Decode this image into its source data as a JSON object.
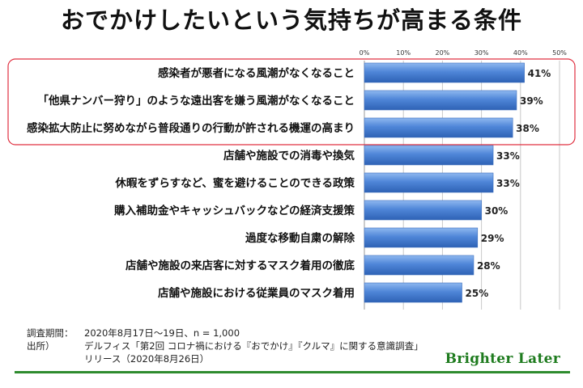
{
  "chart_data": {
    "type": "bar",
    "orientation": "horizontal",
    "title": "おでかけしたいという気持ちが高まる条件",
    "categories": [
      "感染者が悪者になる風潮がなくなること",
      "「他県ナンバー狩り」のような遠出客を嫌う風潮がなくなること",
      "感染拡大防止に努めながら普段通りの行動が許される機運の高まり",
      "店舗や施設での消毒や換気",
      "休暇をずらすなど、蜜を避けることのできる政策",
      "購入補助金やキャッシュバックなどの経済支援策",
      "過度な移動自粛の解除",
      "店舗や施設の来店客に対するマスク着用の徹底",
      "店舗や施設における従業員のマスク着用"
    ],
    "values": [
      41,
      39,
      38,
      33,
      33,
      30,
      29,
      28,
      25
    ],
    "data_labels": [
      "41%",
      "39%",
      "38%",
      "33%",
      "33%",
      "30%",
      "29%",
      "28%",
      "25%"
    ],
    "xlim": [
      0,
      50
    ],
    "ticks": [
      0,
      10,
      20,
      30,
      40,
      50
    ],
    "tick_labels": [
      "0%",
      "10%",
      "20%",
      "30%",
      "40%",
      "50%"
    ],
    "tick_position": "top",
    "grid": true,
    "highlighted_categories": [
      0,
      1,
      2
    ],
    "bar_color": "#4f86d8",
    "highlight_color": "#e03040"
  },
  "notes": {
    "period_key": "調査期間：",
    "period_value": "2020年8月17日〜19日、n = 1,000",
    "source_key": "出所）",
    "source_value": "デルフィス「第2回 コロナ禍における『おでかけ』『クルマ』に関する意識調査」",
    "release_value": "リリース（2020年8月26日）"
  },
  "brand": "Brighter Later",
  "colors": {
    "brand": "#1e7b1e",
    "footer_line": "#2e8b2e"
  }
}
